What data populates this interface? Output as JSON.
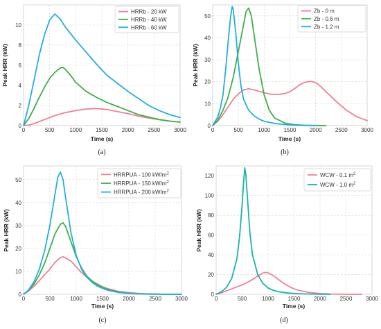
{
  "chart_data": [
    {
      "panel": "a",
      "caption": "(a)",
      "type": "line",
      "xlabel": "Time (s)",
      "ylabel": "Peak HRR (kW)",
      "xlim": [
        0,
        3000
      ],
      "ylim": [
        0,
        12
      ],
      "xticks": [
        "0",
        "500",
        "1000",
        "1500",
        "2000",
        "2500",
        "3000"
      ],
      "yticks": [
        "0",
        "2",
        "4",
        "6",
        "8",
        "10"
      ],
      "grid": true,
      "legend_position": "top-right",
      "series": [
        {
          "name": "HRRb - 20 kW",
          "color": "#f07f95",
          "x": [
            0,
            100,
            200,
            400,
            600,
            800,
            1000,
            1200,
            1400,
            1600,
            1800,
            2000,
            2200,
            2400,
            2600,
            2800,
            3000
          ],
          "y": [
            0,
            0.05,
            0.2,
            0.6,
            1.0,
            1.3,
            1.5,
            1.65,
            1.7,
            1.6,
            1.4,
            1.2,
            0.95,
            0.75,
            0.6,
            0.45,
            0.35
          ]
        },
        {
          "name": "HRRb - 40 kW",
          "color": "#3cb045",
          "x": [
            0,
            100,
            200,
            300,
            400,
            500,
            600,
            700,
            750,
            800,
            900,
            1000,
            1200,
            1400,
            1600,
            1800,
            2000,
            2200,
            2400,
            2600,
            2800,
            3000
          ],
          "y": [
            0,
            0.7,
            1.7,
            2.8,
            3.8,
            4.7,
            5.3,
            5.7,
            5.8,
            5.6,
            5.0,
            4.3,
            3.4,
            2.8,
            2.3,
            1.9,
            1.5,
            1.1,
            0.85,
            0.6,
            0.45,
            0.35
          ]
        },
        {
          "name": "HRRb - 60 kW",
          "color": "#22aee0",
          "x": [
            0,
            100,
            200,
            300,
            400,
            500,
            600,
            700,
            800,
            1000,
            1200,
            1400,
            1600,
            1800,
            2000,
            2200,
            2400,
            2600,
            2800,
            3000
          ],
          "y": [
            0,
            2.0,
            4.5,
            7.0,
            9.0,
            10.5,
            11.1,
            10.6,
            9.8,
            8.5,
            7.3,
            6.1,
            5.0,
            4.2,
            3.4,
            2.7,
            2.0,
            1.5,
            1.1,
            0.8
          ]
        }
      ]
    },
    {
      "panel": "b",
      "caption": "(b)",
      "type": "line",
      "xlabel": "Time (s)",
      "ylabel": "Peak HRR (kW)",
      "xlim": [
        0,
        3000
      ],
      "ylim": [
        0,
        55
      ],
      "xticks": [
        "0",
        "500",
        "1000",
        "1500",
        "2000",
        "2500",
        "3000"
      ],
      "yticks": [
        "0",
        "10",
        "20",
        "30",
        "40",
        "50"
      ],
      "grid": true,
      "legend_position": "top-right",
      "series": [
        {
          "name": "Zb - 0 m",
          "color": "#f07f95",
          "x": [
            0,
            100,
            200,
            300,
            400,
            500,
            600,
            700,
            800,
            900,
            1000,
            1100,
            1200,
            1300,
            1400,
            1500,
            1600,
            1700,
            1800,
            1900,
            2000,
            2100,
            2200,
            2400,
            2600,
            2800,
            3000
          ],
          "y": [
            0,
            2.0,
            5.0,
            8.5,
            12,
            14.5,
            16.2,
            16.8,
            16.3,
            15.6,
            15.0,
            14.4,
            14.2,
            14.3,
            14.6,
            15.5,
            17.0,
            18.8,
            19.8,
            20.2,
            19.6,
            17.8,
            15.5,
            11.0,
            7.0,
            4.0,
            2.3
          ]
        },
        {
          "name": "Zb - 0.6 m",
          "color": "#3cb045",
          "x": [
            0,
            100,
            200,
            300,
            400,
            500,
            600,
            650,
            700,
            750,
            800,
            900,
            1000,
            1100,
            1200,
            1400,
            1600,
            1800,
            2000,
            2200
          ],
          "y": [
            0,
            2.5,
            7.0,
            13.0,
            22.0,
            34.0,
            46.0,
            52.0,
            53.5,
            50.0,
            42.0,
            26.0,
            14.0,
            7.0,
            3.5,
            1.2,
            0.4,
            0.15,
            0.05,
            0
          ]
        },
        {
          "name": "Zb - 1.2 m",
          "color": "#22aee0",
          "x": [
            0,
            100,
            150,
            200,
            250,
            300,
            350,
            380,
            400,
            450,
            500,
            550,
            600,
            700,
            800,
            900,
            1000,
            1200,
            1400,
            1600,
            1800,
            2000
          ],
          "y": [
            0,
            4.0,
            8.0,
            14.0,
            25.0,
            38.0,
            50.0,
            54.2,
            53.0,
            42.0,
            28.0,
            18.0,
            12.0,
            7.0,
            4.5,
            3.0,
            2.0,
            1.0,
            0.5,
            0.2,
            0.1,
            0
          ]
        }
      ]
    },
    {
      "panel": "c",
      "caption": "(c)",
      "type": "line",
      "xlabel": "Time (s)",
      "ylabel": "Peak HRR (kW)",
      "xlim": [
        0,
        3000
      ],
      "ylim": [
        0,
        56
      ],
      "xticks": [
        "0",
        "500",
        "1000",
        "1500",
        "2000",
        "2500",
        "3000"
      ],
      "yticks": [
        "0",
        "10",
        "20",
        "30",
        "40",
        "50"
      ],
      "grid": true,
      "legend_position": "top-right",
      "series": [
        {
          "name": "HRRPUA - 100 kW/m²",
          "name_base": "HRRPUA - 100 kW/m",
          "name_sup": "2",
          "color": "#f07f95",
          "x": [
            0,
            100,
            200,
            300,
            400,
            500,
            600,
            700,
            750,
            800,
            900,
            1000,
            1100,
            1200,
            1300,
            1400,
            1500,
            1600,
            1800,
            2000,
            2200,
            2400,
            2600,
            2800,
            3000
          ],
          "y": [
            0,
            1.5,
            3.5,
            6.0,
            8.5,
            11.0,
            14.0,
            16.0,
            16.4,
            15.8,
            14.5,
            12.0,
            9.5,
            7.5,
            5.8,
            4.5,
            3.3,
            2.5,
            1.3,
            0.7,
            0.35,
            0.15,
            0.05,
            0.02,
            0
          ]
        },
        {
          "name": "HRRPUA - 150 kW/m²",
          "name_base": "HRRPUA - 150 kW/m",
          "name_sup": "2",
          "color": "#3cb045",
          "x": [
            0,
            100,
            200,
            300,
            400,
            500,
            600,
            700,
            750,
            800,
            900,
            1000,
            1100,
            1200,
            1300,
            1400,
            1500,
            1600,
            1800,
            2000,
            2200,
            2400,
            2600,
            3000
          ],
          "y": [
            0,
            1.8,
            4.5,
            8.5,
            13.5,
            20.0,
            26.5,
            30.5,
            31.2,
            29.5,
            23.0,
            16.5,
            11.5,
            8.0,
            5.8,
            4.2,
            3.0,
            2.1,
            1.0,
            0.45,
            0.2,
            0.08,
            0.02,
            0
          ]
        },
        {
          "name": "HRRPUA - 200 kW/m²",
          "name_base": "HRRPUA - 200 kW/m",
          "name_sup": "2",
          "color": "#22aee0",
          "x": [
            0,
            100,
            200,
            300,
            400,
            500,
            600,
            650,
            700,
            750,
            800,
            900,
            1000,
            1100,
            1200,
            1300,
            1400,
            1500,
            1600,
            1800,
            2000,
            2200,
            2400,
            2600,
            3000
          ],
          "y": [
            0,
            2.0,
            5.5,
            11.0,
            19.0,
            30.0,
            44.0,
            51.0,
            53.3,
            50.0,
            42.0,
            27.0,
            17.0,
            11.0,
            7.5,
            5.2,
            3.6,
            2.6,
            1.8,
            0.8,
            0.35,
            0.15,
            0.05,
            0.02,
            0
          ]
        }
      ]
    },
    {
      "panel": "d",
      "caption": "(d)",
      "type": "line",
      "xlabel": "Time (s)",
      "ylabel": "Peak HRR (kW)",
      "xlim": [
        0,
        3000
      ],
      "ylim": [
        0,
        130
      ],
      "xticks": [
        "0",
        "500",
        "1000",
        "1500",
        "2000",
        "2500",
        "3000"
      ],
      "yticks": [
        "0",
        "20",
        "40",
        "60",
        "80",
        "100",
        "120"
      ],
      "grid": true,
      "legend_position": "top-right",
      "series": [
        {
          "name": "WCW - 0.1 m²",
          "name_base": "WCW - 0.1 m",
          "name_sup": "2",
          "color": "#f07f95",
          "x": [
            0,
            100,
            200,
            300,
            400,
            500,
            600,
            700,
            800,
            900,
            950,
            1000,
            1100,
            1200,
            1300,
            1400,
            1500,
            1600,
            1800,
            2000,
            2200,
            2400,
            2600,
            2800
          ],
          "y": [
            0,
            1.5,
            3.5,
            5.5,
            7.5,
            9.5,
            12.0,
            15.0,
            18.5,
            21.5,
            22.2,
            21.8,
            19.0,
            15.0,
            11.0,
            8.0,
            5.5,
            3.8,
            1.8,
            0.8,
            0.3,
            0.1,
            0.03,
            0
          ]
        },
        {
          "name": "WCW - 1.0 m²",
          "name_base": "WCW - 1.0 m",
          "name_sup": "2",
          "color": "#17b3a8",
          "x": [
            0,
            100,
            200,
            300,
            400,
            450,
            500,
            530,
            550,
            570,
            600,
            650,
            700,
            800,
            900,
            1000,
            1100,
            1200,
            1400,
            1600,
            1800,
            2000,
            2200
          ],
          "y": [
            0,
            2.5,
            7.0,
            16.0,
            36.0,
            58.0,
            90.0,
            115.0,
            128.0,
            122.0,
            100.0,
            62.0,
            40.0,
            20.0,
            11.0,
            6.5,
            4.0,
            2.5,
            1.2,
            0.6,
            0.3,
            0.1,
            0
          ]
        }
      ]
    }
  ]
}
